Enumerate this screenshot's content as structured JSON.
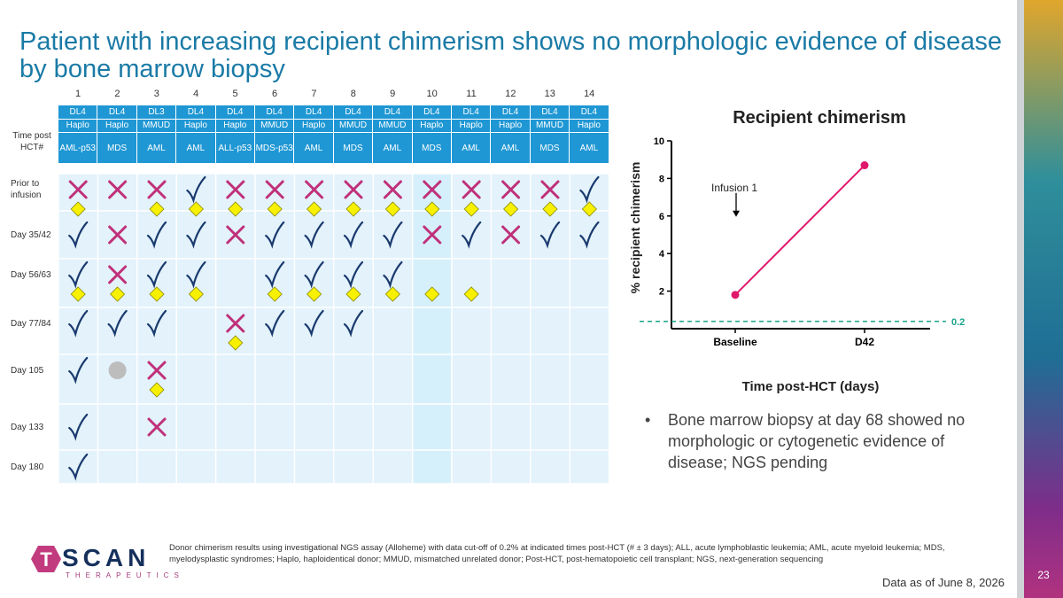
{
  "slide": {
    "title": "Patient with increasing recipient chimerism shows no morphologic evidence of disease by bone marrow biopsy",
    "page_number": "23",
    "data_as_of": "Data as of June 8, 2026",
    "footnote": "Donor chimerism results using investigational NGS assay (Alloheme) with data cut-off of 0.2% at indicated times post-HCT (# ± 3 days); ALL, acute lymphoblastic leukemia; AML, acute myeloid leukemia; MDS, myelodysplastic syndromes; Haplo, haploidentical donor; MMUD, mismatched unrelated donor; Post-HCT, post-hematopoietic cell transplant; NGS, next-generation sequencing",
    "bullet": "Bone marrow biopsy at day 68 showed no morphologic or cytogenetic evidence of disease; NGS pending",
    "bullet_marker": "•",
    "logo": {
      "letter_t": "T",
      "word": "SCAN",
      "subtitle": "THERAPEUTICS"
    }
  },
  "colors": {
    "title": "#1a7aa6",
    "header_blue": "#1f97d4",
    "highlight_col": "#d6f0fb",
    "cross": "#c0307a",
    "check": "#1a3a6e",
    "diamond": "#f7f000",
    "gray_circle": "#bdbdbd",
    "line": "#e0186c",
    "dashed": "#1aa38a"
  },
  "table": {
    "time_label": "Time post HCT#",
    "patients": [
      "1",
      "2",
      "3",
      "4",
      "5",
      "6",
      "7",
      "8",
      "9",
      "10",
      "11",
      "12",
      "13",
      "14"
    ],
    "dose_level": [
      "DL4",
      "DL4",
      "DL3",
      "DL4",
      "DL4",
      "DL4",
      "DL4",
      "DL4",
      "DL4",
      "DL4",
      "DL4",
      "DL4",
      "DL4",
      "DL4"
    ],
    "donor": [
      "Haplo",
      "Haplo",
      "MMUD",
      "Haplo",
      "Haplo",
      "MMUD",
      "Haplo",
      "MMUD",
      "MMUD",
      "Haplo",
      "Haplo",
      "Haplo",
      "MMUD",
      "Haplo"
    ],
    "disease": [
      "AML-p53",
      "MDS",
      "AML",
      "AML",
      "ALL-p53",
      "MDS-p53",
      "AML",
      "MDS",
      "AML",
      "MDS",
      "AML",
      "AML",
      "MDS",
      "AML"
    ],
    "highlight_patient_index": 9,
    "rows": [
      {
        "label": "Prior to infusion",
        "marks": [
          "X",
          "X",
          "X",
          "C",
          "X",
          "X",
          "X",
          "X",
          "X",
          "X",
          "X",
          "X",
          "X",
          "C"
        ],
        "diamonds": [
          1,
          0,
          1,
          1,
          1,
          1,
          1,
          1,
          1,
          1,
          1,
          1,
          1,
          1
        ]
      },
      {
        "label": "Day 35/42",
        "marks": [
          "C",
          "X",
          "C",
          "C",
          "X",
          "C",
          "C",
          "C",
          "C",
          "X",
          "C",
          "X",
          "C",
          "C"
        ],
        "diamonds": [
          0,
          0,
          0,
          0,
          0,
          0,
          0,
          0,
          0,
          0,
          0,
          0,
          0,
          0
        ]
      },
      {
        "label": "Day 56/63",
        "marks": [
          "C",
          "X",
          "C",
          "C",
          "",
          "C",
          "C",
          "C",
          "C",
          "",
          "",
          "",
          "",
          ""
        ],
        "diamonds": [
          1,
          1,
          1,
          1,
          0,
          1,
          1,
          1,
          1,
          1,
          1,
          0,
          0,
          0
        ]
      },
      {
        "label": "Day 77/84",
        "marks": [
          "C",
          "C",
          "C",
          "",
          "X",
          "C",
          "C",
          "C",
          "",
          "",
          "",
          "",
          "",
          ""
        ],
        "diamonds": [
          0,
          0,
          0,
          0,
          1,
          0,
          0,
          0,
          0,
          0,
          0,
          0,
          0,
          0
        ]
      },
      {
        "label": "Day 105",
        "marks": [
          "C",
          "O",
          "X",
          "",
          "",
          "",
          "",
          "",
          "",
          "",
          "",
          "",
          "",
          ""
        ],
        "diamonds": [
          0,
          0,
          1,
          0,
          0,
          0,
          0,
          0,
          0,
          0,
          0,
          0,
          0,
          0
        ]
      },
      {
        "label": "Day 133",
        "marks": [
          "C",
          "",
          "X",
          "",
          "",
          "",
          "",
          "",
          "",
          "",
          "",
          "",
          "",
          ""
        ],
        "diamonds": [
          0,
          0,
          0,
          0,
          0,
          0,
          0,
          0,
          0,
          0,
          0,
          0,
          0,
          0
        ]
      },
      {
        "label": "Day 180",
        "marks": [
          "C",
          "",
          "",
          "",
          "",
          "",
          "",
          "",
          "",
          "",
          "",
          "",
          "",
          ""
        ],
        "diamonds": [
          0,
          0,
          0,
          0,
          0,
          0,
          0,
          0,
          0,
          0,
          0,
          0,
          0,
          0
        ]
      }
    ]
  },
  "chart_data": {
    "type": "line",
    "title": "Recipient chimerism",
    "xlabel": "Time post-HCT (days)",
    "ylabel": "% recipient chimerism",
    "categories": [
      "Baseline",
      "D42"
    ],
    "series": [
      {
        "values": [
          1.8,
          8.7
        ]
      }
    ],
    "ylim": [
      0,
      10
    ],
    "yticks": [
      "2",
      "4",
      "6",
      "8",
      "10"
    ],
    "threshold": {
      "value": 0.2,
      "label": "0.2"
    },
    "annotation": {
      "text": "Infusion 1",
      "arrow_y": 6.0
    }
  }
}
